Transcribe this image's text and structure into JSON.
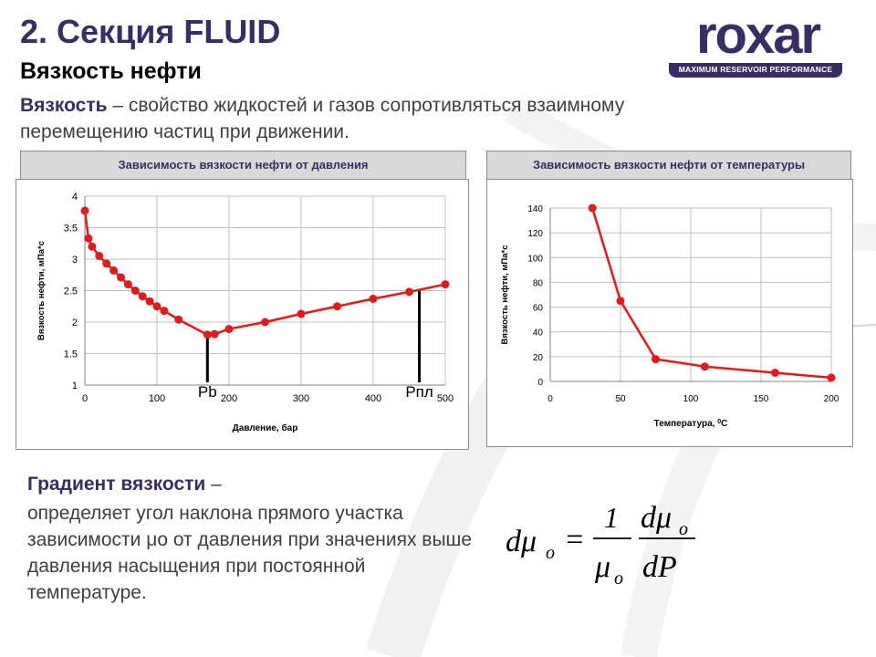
{
  "header": {
    "title": "2. Секция FLUID",
    "subtitle": "Вязкость нефти"
  },
  "logo": {
    "word": "roxar",
    "tagline": "MAXIMUM RESERVOIR PERFORMANCE"
  },
  "definition": {
    "term": "Вязкость",
    "text": " – свойство жидкостей и газов сопротивляться взаимному перемещению частиц при движении."
  },
  "gradient": {
    "term": "Градиент вязкости",
    "dash": " –",
    "text": "определяет угол наклона прямого участка зависимости μо от давления при значениях выше давления насыщения при постоянной температуре."
  },
  "formula": {
    "lhs": "dμ",
    "lhs_sub": "o",
    "eq": "=",
    "num1": "1",
    "den1": "μ",
    "den1_sub": "o",
    "num2": "dμ",
    "num2_sub": "o",
    "den2": "dP"
  },
  "colors": {
    "brand": "#3a2d67",
    "series": "#e31a1c",
    "header_bg": "#d9d9d9"
  },
  "chart_data": [
    {
      "type": "line",
      "title": "Зависимость вязкости нефти от давления",
      "xlabel": "Давление, бар",
      "ylabel": "Вязкость нефти,  мПа*с",
      "xlim": [
        0,
        500
      ],
      "ylim": [
        1,
        4
      ],
      "xticks": [
        0,
        100,
        200,
        300,
        400,
        500
      ],
      "yticks": [
        1,
        1.5,
        2,
        2.5,
        3,
        3.5,
        4
      ],
      "ytick_labels": [
        "1",
        "1.5",
        "2",
        "2.5",
        "3",
        "3.5",
        "4"
      ],
      "grid": true,
      "series": [
        {
          "x": [
            0,
            5,
            10,
            20,
            30,
            40,
            50,
            60,
            70,
            80,
            90,
            100,
            110,
            130,
            170,
            180,
            200,
            250,
            300,
            350,
            400,
            450,
            500
          ],
          "y": [
            3.77,
            3.33,
            3.2,
            3.05,
            2.93,
            2.82,
            2.71,
            2.6,
            2.5,
            2.41,
            2.33,
            2.25,
            2.18,
            2.04,
            1.8,
            1.81,
            1.89,
            2.0,
            2.13,
            2.25,
            2.37,
            2.48,
            2.6
          ]
        }
      ],
      "annotations": [
        {
          "label": "Pb",
          "x": 170,
          "y_top": 1.8
        },
        {
          "label": "Рпл",
          "x": 464,
          "y_top": 2.5
        }
      ]
    },
    {
      "type": "line",
      "title": "Зависимость вязкости нефти от температуры",
      "xlabel": "Температура, ",
      "xlabel_unit": "0C",
      "ylabel": "Вязкость нефти,  мПа*с",
      "xlim": [
        0,
        200
      ],
      "ylim": [
        0,
        140
      ],
      "xticks": [
        0,
        50,
        100,
        150,
        200
      ],
      "yticks": [
        0,
        20,
        40,
        60,
        80,
        100,
        120,
        140
      ],
      "ytick_labels": [
        "0",
        "20",
        "40",
        "60",
        "80",
        "100",
        "120",
        "140"
      ],
      "grid": true,
      "series": [
        {
          "x": [
            30,
            50,
            75,
            110,
            160,
            200
          ],
          "y": [
            140,
            65,
            18,
            12,
            7,
            3
          ]
        }
      ]
    }
  ]
}
